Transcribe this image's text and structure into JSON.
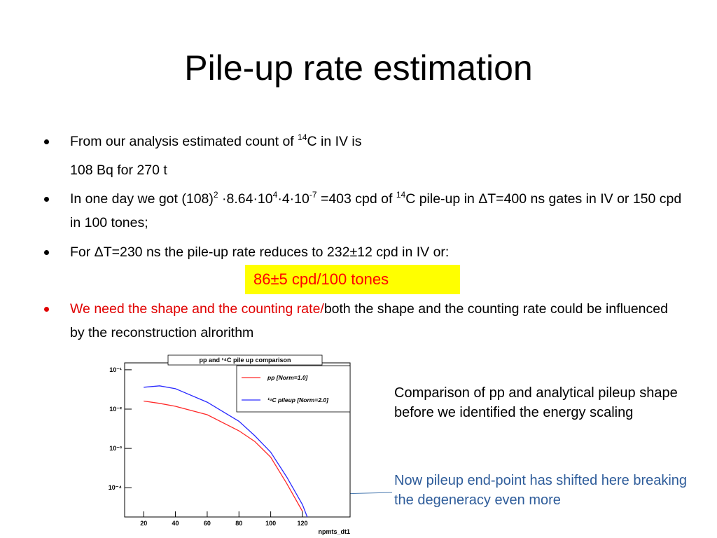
{
  "title": "Pile-up rate estimation",
  "bullets": [
    {
      "segments": [
        {
          "t": "From our analysis estimated count of "
        },
        {
          "sup": "14"
        },
        {
          "t": "C in IV is"
        }
      ]
    },
    {
      "segments": [
        {
          "t": "108 Bq for 270 t"
        }
      ]
    },
    {
      "segments": [
        {
          "t": "In one day we got (108)"
        },
        {
          "sup": "2"
        },
        {
          "t": " ·8.64·10"
        },
        {
          "sup": "4"
        },
        {
          "t": "·4·10"
        },
        {
          "sup": "-7"
        },
        {
          "t": " =403  cpd of "
        },
        {
          "sup": "14"
        },
        {
          "t": "C pile-up in ΔT=400 ns gates in IV or 150 cpd in 100 tones;"
        }
      ]
    },
    {
      "segments": [
        {
          "t": "For ΔT=230 ns the pile-up rate reduces to 232±12 cpd in IV or:"
        }
      ]
    },
    {
      "segments": [
        {
          "red": "We need  the shape and the counting rate/"
        },
        {
          "t": "both the shape and the counting rate could be influenced by the reconstruction alrorithm"
        }
      ]
    }
  ],
  "highlight": "86±5 cpd/100 tones",
  "notes": [
    "Comparison of pp and analytical pileup shape before we identified the energy scaling",
    "Now pileup end-point has shifted here breaking the degeneracy even more"
  ],
  "plot": {
    "type": "line",
    "title": "pp and ¹⁴C pile up comparison",
    "x_label": "npmts_dt1",
    "log_y": true,
    "xlim": [
      8,
      150
    ],
    "ylim": [
      1.8e-05,
      0.15
    ],
    "xticks": [
      20,
      40,
      60,
      80,
      100,
      120
    ],
    "yticks": [
      {
        "value": 0.1,
        "label": "10⁻¹"
      },
      {
        "value": 0.01,
        "label": "10⁻²"
      },
      {
        "value": 0.001,
        "label": "10⁻³"
      },
      {
        "value": 0.0001,
        "label": "10⁻⁴"
      }
    ],
    "x": [
      20,
      30,
      40,
      60,
      80,
      90,
      100,
      110,
      120,
      123
    ],
    "series": [
      {
        "name": "pp [Norm=1.0]",
        "color": "#ff2a2a",
        "values": [
          0.016,
          0.014,
          0.0118,
          0.0072,
          0.0028,
          0.0015,
          0.0006,
          0.00013,
          2.5e-05,
          null
        ]
      },
      {
        "name": "¹⁴C pileup [Norm=2.0]",
        "color": "#2a2aff",
        "values": [
          0.036,
          0.039,
          0.033,
          0.015,
          0.0049,
          0.0021,
          0.0008,
          0.00019,
          3.7e-05,
          1.8e-05
        ]
      }
    ]
  }
}
